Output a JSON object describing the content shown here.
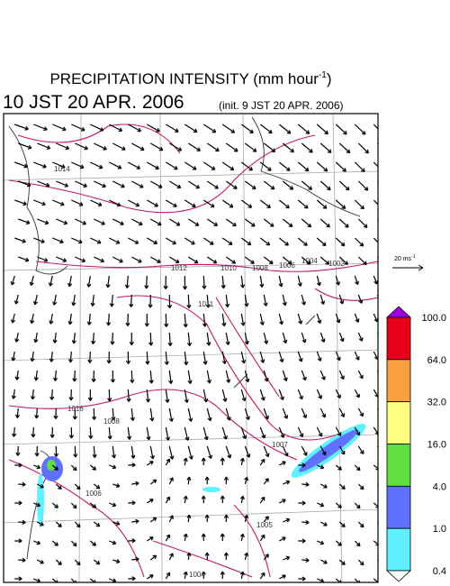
{
  "header": {
    "title": "PRECIPITATION INTENSITY (mm hour",
    "title_sup": "-1",
    "title_end": ")",
    "valid_time": "10 JST 20 APR. 2006",
    "init": "(init. 9 JST 20 APR. 2006)"
  },
  "vector_scale": {
    "label": "20 ms",
    "sup": "-1"
  },
  "colorbar": {
    "labels": [
      "100.0",
      "64.0",
      "32.0",
      "16.0",
      "4.0",
      "1.0",
      "0.4"
    ],
    "colors": [
      "#a000e0",
      "#e8001a",
      "#f8a040",
      "#ffff80",
      "#60e040",
      "#6070ff",
      "#60f0ff",
      "#ffffff"
    ]
  },
  "isobar_labels": [
    "1014",
    "1012",
    "1010",
    "1008",
    "1006",
    "1004",
    "1002",
    "1011",
    "1016",
    "1008",
    "1007",
    "1006",
    "1005",
    "1004"
  ]
}
